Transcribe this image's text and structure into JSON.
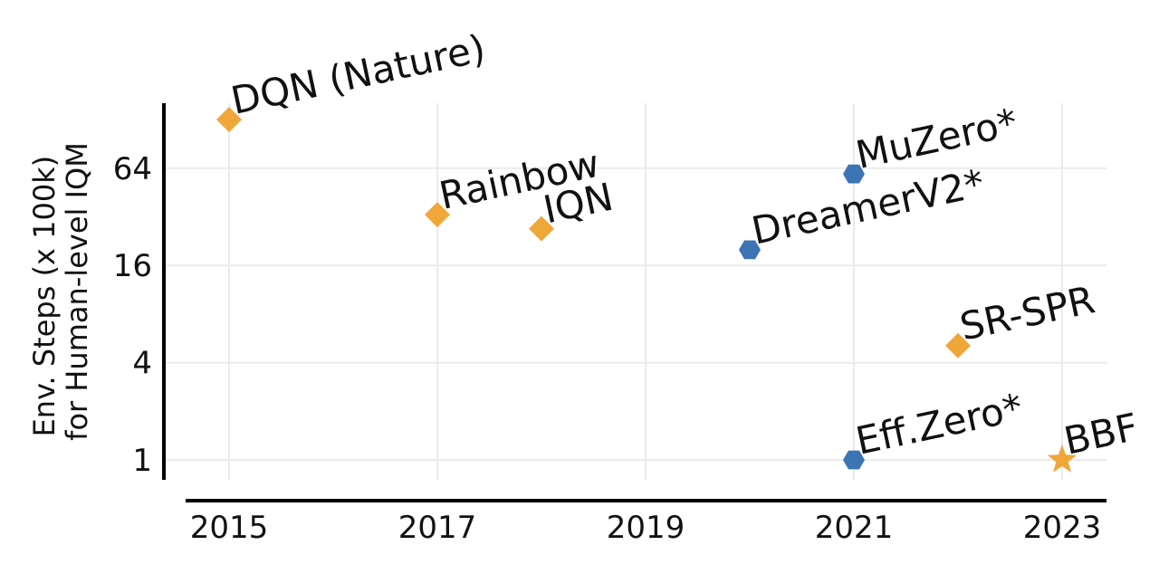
{
  "chart_data": {
    "type": "scatter",
    "ylabel_lines": [
      "Env. Steps (x 100k)",
      "for Human-level IQM"
    ],
    "x_ticks": [
      2015,
      2017,
      2019,
      2021,
      2023
    ],
    "y_ticks": [
      {
        "value": 1,
        "label": "1"
      },
      {
        "value": 4,
        "label": "4"
      },
      {
        "value": 16,
        "label": "16"
      },
      {
        "value": 64,
        "label": "64"
      }
    ],
    "y_scale": "log2",
    "xlim": [
      2014.6,
      2023.4
    ],
    "ylim": [
      0.8,
      160
    ],
    "grid": true,
    "colors": {
      "orange": "#f0a73a",
      "blue": "#3d74b4"
    },
    "points": [
      {
        "label": "DQN (Nature)",
        "x": 2015,
        "y": 128,
        "marker": "diamond",
        "color": "#f0a73a"
      },
      {
        "label": "Rainbow",
        "x": 2017,
        "y": 33,
        "marker": "diamond",
        "color": "#f0a73a"
      },
      {
        "label": "IQN",
        "x": 2018,
        "y": 27,
        "marker": "diamond",
        "color": "#f0a73a"
      },
      {
        "label": "MuZero*",
        "x": 2021,
        "y": 59,
        "marker": "hexagon",
        "color": "#3d74b4"
      },
      {
        "label": "DreamerV2*",
        "x": 2020,
        "y": 20,
        "marker": "hexagon",
        "color": "#3d74b4"
      },
      {
        "label": "SR-SPR",
        "x": 2022,
        "y": 5.1,
        "marker": "diamond",
        "color": "#f0a73a"
      },
      {
        "label": "Eff.Zero*",
        "x": 2021,
        "y": 1,
        "marker": "hexagon",
        "color": "#3d74b4"
      },
      {
        "label": "BBF",
        "x": 2023,
        "y": 1,
        "marker": "star",
        "color": "#f0a73a"
      }
    ]
  }
}
